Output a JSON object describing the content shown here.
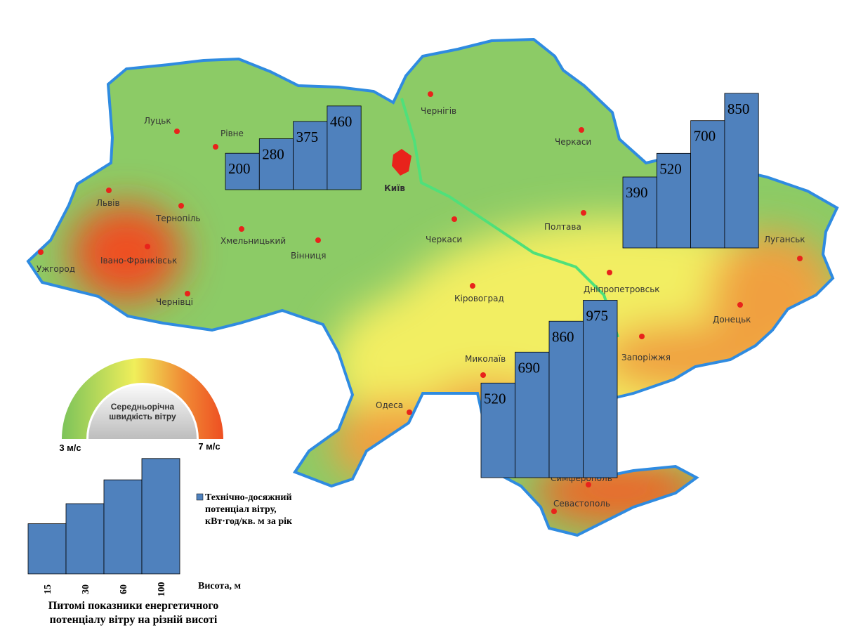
{
  "map": {
    "cities": [
      "Луцьк",
      "Рівне",
      "Львів",
      "Тернопіль",
      "Хмельницький",
      "Вінниця",
      "Ужгород",
      "Івано-Франківськ",
      "Чернівці",
      "Київ",
      "Чернігів",
      "Черкаси",
      "Черкаси",
      "Полтава",
      "Кіровоград",
      "Дніпропетровськ",
      "Луганськ",
      "Донецьк",
      "Запоріжжя",
      "Миколаїв",
      "Одеса",
      "Симферополь",
      "Севастополь"
    ]
  },
  "wind_legend": {
    "title": "Середньорічна швидкість вітру",
    "min_label": "3 м/с",
    "max_label": "7 м/с"
  },
  "chart_data": [
    {
      "type": "bar",
      "values": [
        200,
        280,
        375,
        460
      ],
      "color": "#4f81bd"
    },
    {
      "type": "bar",
      "values": [
        390,
        520,
        700,
        850
      ],
      "color": "#4f81bd"
    },
    {
      "type": "bar",
      "values": [
        520,
        690,
        860,
        975
      ],
      "color": "#4f81bd"
    },
    {
      "type": "bar",
      "title": "Питомі показники енергетичного потенціалу вітру на різній висоті",
      "categories": [
        "15",
        "30",
        "60",
        "100"
      ],
      "xlabel": "Висота, м",
      "series": [
        {
          "name": "Технічно-досяжний потенціал вітру, кВт·год/кв. м за рік",
          "color": "#4f81bd",
          "values": [
            200,
            280,
            375,
            460
          ]
        }
      ]
    }
  ]
}
